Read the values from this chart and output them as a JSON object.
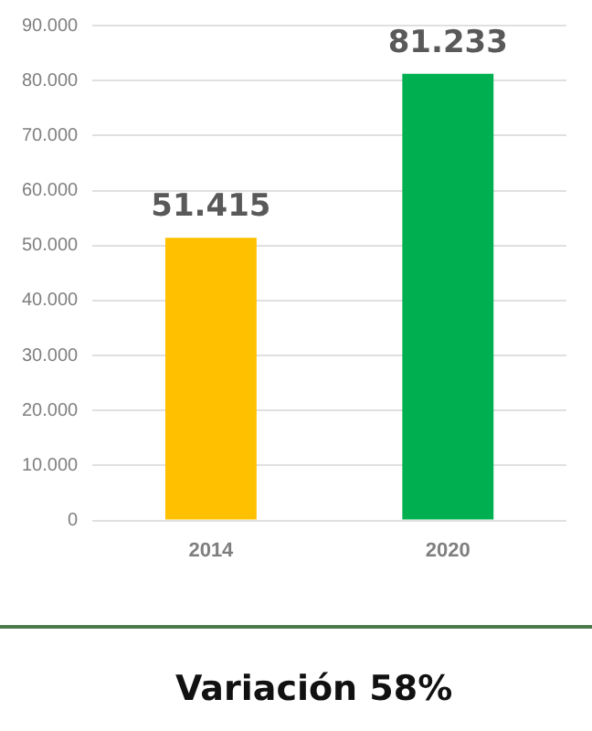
{
  "chart_data": {
    "type": "bar",
    "categories": [
      "2014",
      "2020"
    ],
    "values": [
      51415,
      81233
    ],
    "colors": [
      "#ffc000",
      "#00b050"
    ],
    "value_labels": [
      "51.415",
      "81.233"
    ],
    "ylim": [
      0,
      90000
    ],
    "yticks": [
      0,
      {
        "value": 10000,
        "label": "10.000"
      },
      {
        "value": 20000,
        "label": "20.000"
      },
      {
        "value": 30000,
        "label": "30.000"
      },
      {
        "value": 40000,
        "label": "40.000"
      },
      {
        "value": 50000,
        "label": "50.000"
      },
      {
        "value": 60000,
        "label": "60.000"
      },
      {
        "value": 70000,
        "label": "70.000"
      },
      {
        "value": 80000,
        "label": "80.000"
      },
      {
        "value": 90000,
        "label": "90.000"
      }
    ],
    "grid": "y",
    "legend": false,
    "annotations": [
      "Variación 58%"
    ]
  }
}
